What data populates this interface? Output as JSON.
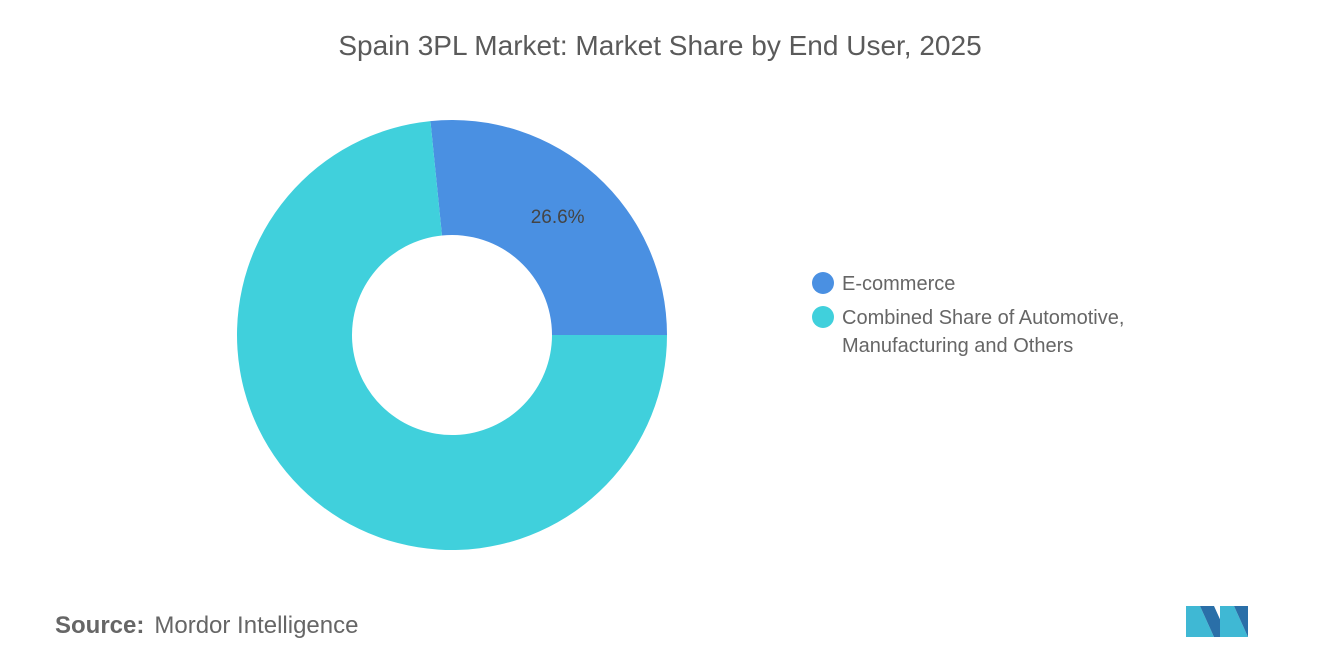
{
  "chart_data": {
    "type": "donut",
    "title": "Spain 3PL Market: Market Share by End User, 2025",
    "categories": [
      "E-commerce",
      "Combined Share of Automotive, Manufacturing and Others"
    ],
    "values": [
      26.6,
      73.4
    ],
    "value_labels": [
      "26.6%",
      null
    ],
    "colors": [
      "#4a90e2",
      "#40d0dc"
    ],
    "source_label": "Source:",
    "source": "Mordor Intelligence"
  }
}
